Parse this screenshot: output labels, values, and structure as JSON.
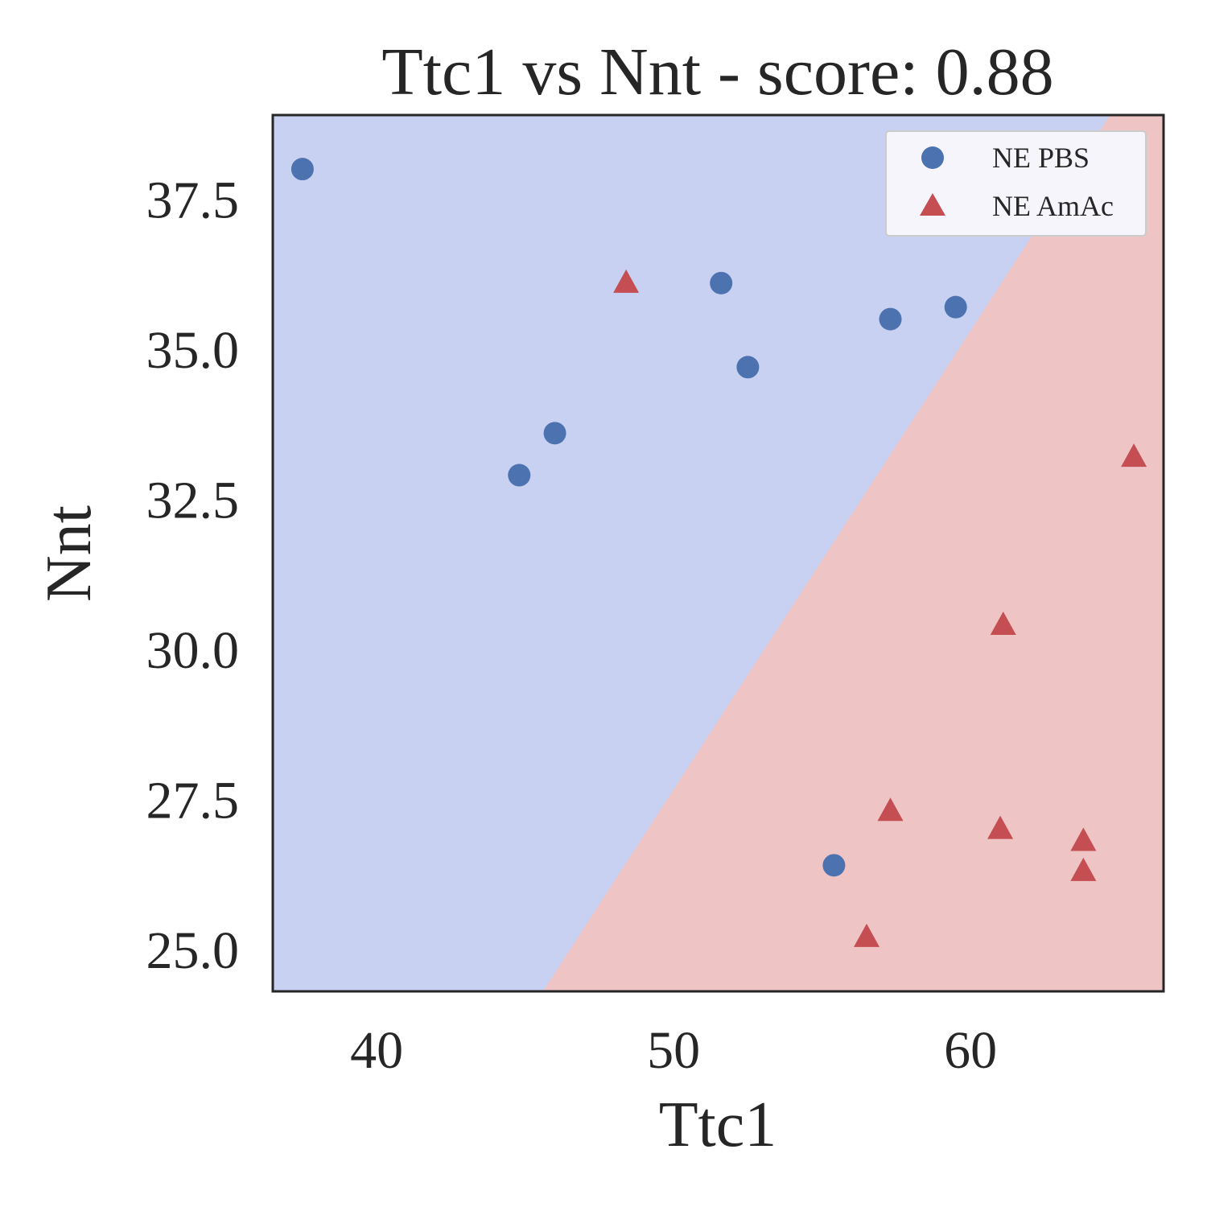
{
  "chart_data": {
    "type": "scatter",
    "title": "Ttc1 vs Nnt - score: 0.88",
    "xlabel": "Ttc1",
    "ylabel": "Nnt",
    "xlim": [
      36.5,
      66.5
    ],
    "ylim": [
      24.3,
      38.9
    ],
    "xticks": [
      40,
      50,
      60
    ],
    "xtick_labels": [
      "40",
      "50",
      "60"
    ],
    "yticks": [
      25.0,
      27.5,
      30.0,
      32.5,
      35.0,
      37.5
    ],
    "ytick_labels": [
      "25.0",
      "27.5",
      "30.0",
      "32.5",
      "35.0",
      "37.5"
    ],
    "grid": false,
    "legend_position": "top-right",
    "decision_boundary": [
      [
        45.6,
        24.3
      ],
      [
        64.7,
        38.9
      ]
    ],
    "regions": [
      {
        "name": "NE PBS",
        "side": "upper-left",
        "color": "#c8d1f1"
      },
      {
        "name": "NE AmAc",
        "side": "lower-right",
        "color": "#efc4c4"
      }
    ],
    "series": [
      {
        "name": "NE PBS",
        "marker": "circle",
        "color": "#4c72b0",
        "points": [
          [
            37.5,
            38.0
          ],
          [
            44.8,
            32.9
          ],
          [
            46.0,
            33.6
          ],
          [
            51.6,
            36.1
          ],
          [
            52.5,
            34.7
          ],
          [
            57.3,
            35.5
          ],
          [
            59.5,
            35.7
          ],
          [
            55.4,
            26.4
          ]
        ]
      },
      {
        "name": "NE AmAc",
        "marker": "triangle",
        "color": "#c44e52",
        "points": [
          [
            48.4,
            36.1
          ],
          [
            65.5,
            33.2
          ],
          [
            61.1,
            30.4
          ],
          [
            57.3,
            27.3
          ],
          [
            61.0,
            27.0
          ],
          [
            63.8,
            26.8
          ],
          [
            63.8,
            26.3
          ],
          [
            56.5,
            25.2
          ]
        ]
      }
    ]
  }
}
